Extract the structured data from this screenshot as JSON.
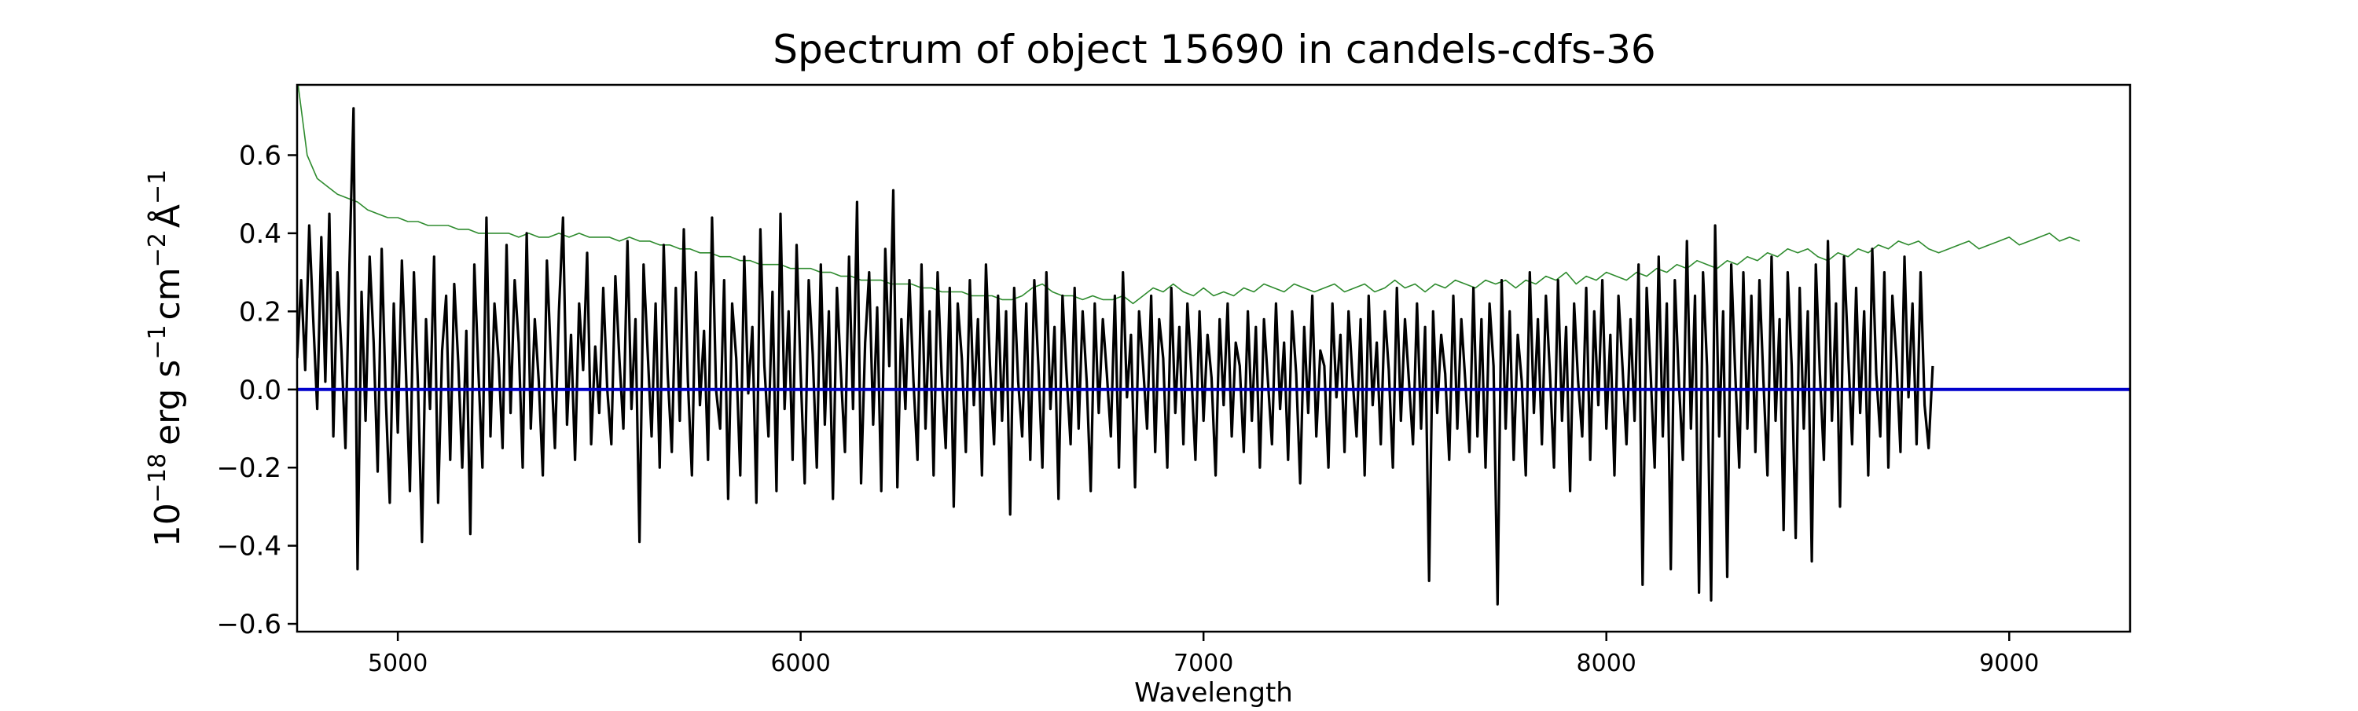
{
  "chart_data": {
    "type": "line",
    "title": "Spectrum of object 15690 in candels-cdfs-36",
    "xlabel": "Wavelength",
    "ylabel": {
      "base": "10",
      "exp": "−18",
      "unit_erg": "erg s",
      "exp_s": "−1",
      "unit_cm": "cm",
      "exp_cm": "−2",
      "unit_a": "Å",
      "exp_a": "−1"
    },
    "xlim": [
      4750,
      9300
    ],
    "ylim": [
      -0.62,
      0.78
    ],
    "x_ticks": [
      5000,
      6000,
      7000,
      8000,
      9000
    ],
    "x_tick_labels": [
      "5000",
      "6000",
      "7000",
      "8000",
      "9000"
    ],
    "y_ticks": [
      -0.6,
      -0.4,
      -0.2,
      0.0,
      0.2,
      0.4,
      0.6
    ],
    "y_tick_labels": [
      "−0.6",
      "−0.4",
      "−0.2",
      "0.0",
      "0.2",
      "0.4",
      "0.6"
    ],
    "grid": false,
    "legend": "none",
    "colors": {
      "flux": "#000000",
      "error": "#2e8b2e",
      "zero": "#0000cc"
    },
    "series": [
      {
        "role": "flux",
        "x_start": 4750,
        "x_step": 10,
        "values": [
          0.08,
          0.28,
          0.05,
          0.42,
          0.18,
          -0.05,
          0.39,
          0.02,
          0.45,
          -0.12,
          0.3,
          0.1,
          -0.15,
          0.32,
          0.72,
          -0.46,
          0.25,
          -0.08,
          0.34,
          0.12,
          -0.21,
          0.36,
          -0.02,
          -0.29,
          0.22,
          -0.11,
          0.33,
          0.05,
          -0.26,
          0.3,
          0.01,
          -0.39,
          0.18,
          -0.05,
          0.34,
          -0.29,
          0.1,
          0.24,
          -0.18,
          0.27,
          0.07,
          -0.2,
          0.15,
          -0.37,
          0.32,
          0.05,
          -0.2,
          0.44,
          -0.12,
          0.22,
          0.08,
          -0.15,
          0.37,
          -0.06,
          0.28,
          0.12,
          -0.2,
          0.4,
          -0.1,
          0.18,
          0.02,
          -0.22,
          0.33,
          0.08,
          -0.15,
          0.2,
          0.44,
          -0.09,
          0.14,
          -0.18,
          0.22,
          0.05,
          0.35,
          -0.14,
          0.11,
          -0.06,
          0.26,
          0.0,
          -0.14,
          0.29,
          0.08,
          -0.1,
          0.38,
          -0.05,
          0.18,
          -0.39,
          0.32,
          0.1,
          -0.12,
          0.22,
          -0.2,
          0.37,
          0.04,
          -0.16,
          0.26,
          -0.08,
          0.41,
          0.02,
          -0.22,
          0.3,
          -0.04,
          0.15,
          -0.18,
          0.44,
          0.0,
          -0.1,
          0.28,
          -0.28,
          0.22,
          0.08,
          -0.22,
          0.34,
          -0.01,
          0.16,
          -0.29,
          0.41,
          0.06,
          -0.12,
          0.25,
          -0.26,
          0.45,
          -0.05,
          0.2,
          -0.18,
          0.37,
          0.04,
          -0.24,
          0.28,
          0.09,
          -0.2,
          0.32,
          -0.09,
          0.2,
          -0.28,
          0.26,
          0.04,
          -0.16,
          0.34,
          -0.05,
          0.48,
          -0.24,
          0.12,
          0.3,
          -0.09,
          0.21,
          -0.26,
          0.36,
          0.06,
          0.51,
          -0.25,
          0.18,
          -0.05,
          0.28,
          0.02,
          -0.18,
          0.32,
          -0.1,
          0.2,
          -0.22,
          0.3,
          0.04,
          -0.15,
          0.26,
          -0.3,
          0.22,
          0.08,
          -0.16,
          0.28,
          -0.04,
          0.18,
          -0.22,
          0.32,
          0.06,
          -0.14,
          0.24,
          -0.08,
          0.2,
          -0.32,
          0.26,
          0.02,
          -0.12,
          0.22,
          -0.18,
          0.28,
          0.06,
          -0.2,
          0.3,
          -0.05,
          0.16,
          -0.28,
          0.24,
          0.04,
          -0.14,
          0.26,
          -0.1,
          0.2,
          0.02,
          -0.26,
          0.22,
          -0.06,
          0.18,
          0.04,
          -0.12,
          0.24,
          -0.2,
          0.3,
          -0.02,
          0.14,
          -0.25,
          0.2,
          0.06,
          -0.1,
          0.24,
          -0.16,
          0.18,
          0.08,
          -0.2,
          0.26,
          -0.06,
          0.16,
          -0.14,
          0.22,
          0.04,
          -0.18,
          0.2,
          -0.08,
          0.14,
          0.03,
          -0.22,
          0.18,
          -0.04,
          0.22,
          -0.12,
          0.12,
          0.06,
          -0.16,
          0.2,
          -0.08,
          0.16,
          -0.2,
          0.18,
          0.02,
          -0.14,
          0.22,
          -0.05,
          0.12,
          -0.18,
          0.2,
          0.04,
          -0.24,
          0.16,
          -0.06,
          0.24,
          -0.12,
          0.1,
          0.06,
          -0.2,
          0.22,
          -0.02,
          0.14,
          -0.16,
          0.2,
          0.03,
          -0.12,
          0.18,
          -0.22,
          0.24,
          -0.04,
          0.12,
          -0.14,
          0.2,
          0.05,
          -0.2,
          0.26,
          -0.08,
          0.18,
          0.02,
          -0.14,
          0.22,
          -0.1,
          0.16,
          -0.49,
          0.2,
          -0.06,
          0.14,
          0.04,
          -0.18,
          0.24,
          -0.1,
          0.18,
          0.02,
          -0.16,
          0.26,
          -0.12,
          0.18,
          -0.2,
          0.22,
          0.06,
          -0.55,
          0.28,
          -0.1,
          0.2,
          -0.18,
          0.14,
          0.02,
          -0.22,
          0.3,
          -0.06,
          0.18,
          -0.14,
          0.24,
          0.04,
          -0.2,
          0.28,
          -0.08,
          0.16,
          -0.26,
          0.22,
          0.02,
          -0.12,
          0.26,
          -0.18,
          0.2,
          -0.04,
          0.28,
          -0.1,
          0.14,
          -0.22,
          0.24,
          0.06,
          -0.14,
          0.18,
          -0.08,
          0.32,
          -0.5,
          0.26,
          0.04,
          -0.2,
          0.34,
          -0.12,
          0.22,
          -0.46,
          0.28,
          0.02,
          -0.18,
          0.38,
          -0.1,
          0.24,
          -0.52,
          0.3,
          0.06,
          -0.54,
          0.42,
          -0.12,
          0.2,
          -0.48,
          0.32,
          0.04,
          -0.2,
          0.3,
          -0.1,
          0.24,
          -0.16,
          0.28,
          0.02,
          -0.22,
          0.34,
          -0.08,
          0.18,
          -0.36,
          0.3,
          0.06,
          -0.38,
          0.26,
          -0.1,
          0.2,
          -0.44,
          0.32,
          0.04,
          -0.18,
          0.38,
          -0.08,
          0.22,
          -0.3,
          0.34,
          0.1,
          -0.14,
          0.26,
          -0.06,
          0.2,
          -0.22,
          0.36,
          0.04,
          -0.12,
          0.3,
          -0.2,
          0.24,
          0.08,
          -0.16,
          0.34,
          -0.02,
          0.22,
          -0.14,
          0.3,
          -0.04,
          -0.15,
          0.06
        ]
      },
      {
        "role": "error",
        "x_start": 4750,
        "x_step": 25,
        "values": [
          0.8,
          0.6,
          0.54,
          0.52,
          0.5,
          0.49,
          0.48,
          0.46,
          0.45,
          0.44,
          0.44,
          0.43,
          0.43,
          0.42,
          0.42,
          0.42,
          0.41,
          0.41,
          0.4,
          0.4,
          0.4,
          0.4,
          0.39,
          0.4,
          0.39,
          0.39,
          0.4,
          0.39,
          0.4,
          0.39,
          0.39,
          0.39,
          0.38,
          0.39,
          0.38,
          0.38,
          0.37,
          0.37,
          0.36,
          0.36,
          0.35,
          0.35,
          0.34,
          0.34,
          0.33,
          0.33,
          0.32,
          0.32,
          0.32,
          0.31,
          0.31,
          0.31,
          0.3,
          0.3,
          0.29,
          0.29,
          0.28,
          0.28,
          0.28,
          0.27,
          0.27,
          0.27,
          0.26,
          0.26,
          0.25,
          0.25,
          0.25,
          0.24,
          0.24,
          0.24,
          0.23,
          0.23,
          0.24,
          0.26,
          0.27,
          0.25,
          0.24,
          0.24,
          0.23,
          0.24,
          0.23,
          0.23,
          0.24,
          0.22,
          0.24,
          0.26,
          0.25,
          0.27,
          0.25,
          0.24,
          0.26,
          0.24,
          0.25,
          0.24,
          0.26,
          0.25,
          0.27,
          0.26,
          0.25,
          0.27,
          0.26,
          0.25,
          0.26,
          0.27,
          0.25,
          0.26,
          0.27,
          0.25,
          0.26,
          0.28,
          0.26,
          0.27,
          0.25,
          0.27,
          0.26,
          0.28,
          0.27,
          0.26,
          0.28,
          0.27,
          0.28,
          0.26,
          0.28,
          0.27,
          0.29,
          0.28,
          0.3,
          0.27,
          0.29,
          0.28,
          0.3,
          0.29,
          0.28,
          0.3,
          0.29,
          0.31,
          0.3,
          0.32,
          0.31,
          0.33,
          0.32,
          0.31,
          0.33,
          0.32,
          0.34,
          0.33,
          0.35,
          0.34,
          0.36,
          0.35,
          0.36,
          0.34,
          0.33,
          0.35,
          0.34,
          0.36,
          0.35,
          0.37,
          0.36,
          0.38,
          0.37,
          0.38,
          0.36,
          0.35,
          0.36,
          0.37,
          0.38,
          0.36,
          0.37,
          0.38,
          0.39,
          0.37,
          0.38,
          0.39,
          0.4,
          0.38,
          0.39,
          0.38
        ]
      },
      {
        "role": "zero",
        "values": [
          0.0
        ]
      }
    ]
  }
}
